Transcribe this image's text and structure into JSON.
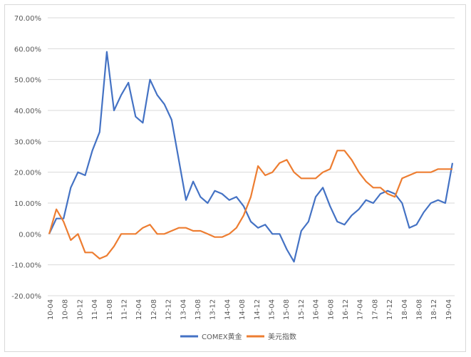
{
  "chart_data": {
    "type": "line",
    "title": "",
    "xlabel": "",
    "ylabel": "",
    "grid": true,
    "legend_position": "bottom",
    "ylim": [
      -0.2,
      0.7
    ],
    "y_ticks": [
      -0.2,
      -0.1,
      0.0,
      0.1,
      0.2,
      0.3,
      0.4,
      0.5,
      0.6,
      0.7
    ],
    "y_tick_labels": [
      "-20.00%",
      "-10.00%",
      "0.00%",
      "10.00%",
      "20.00%",
      "30.00%",
      "40.00%",
      "50.00%",
      "60.00%",
      "70.00%"
    ],
    "x_tick_labels": [
      "10-04",
      "10-08",
      "10-12",
      "11-04",
      "11-08",
      "11-12",
      "12-04",
      "12-08",
      "12-12",
      "13-04",
      "13-08",
      "13-12",
      "14-04",
      "14-08",
      "14-12",
      "15-04",
      "15-08",
      "15-12",
      "16-04",
      "16-08",
      "16-12",
      "17-04",
      "17-08",
      "17-12",
      "18-04",
      "18-08",
      "18-12",
      "19-04"
    ],
    "x": [
      "10-04",
      "10-06",
      "10-08",
      "10-10",
      "10-12",
      "11-02",
      "11-04",
      "11-06",
      "11-08",
      "11-10",
      "11-12",
      "12-02",
      "12-04",
      "12-06",
      "12-08",
      "12-10",
      "12-12",
      "13-02",
      "13-04",
      "13-06",
      "13-08",
      "13-10",
      "13-12",
      "14-02",
      "14-04",
      "14-06",
      "14-08",
      "14-10",
      "14-12",
      "15-02",
      "15-04",
      "15-06",
      "15-08",
      "15-10",
      "15-12",
      "16-02",
      "16-04",
      "16-06",
      "16-08",
      "16-10",
      "16-12",
      "17-02",
      "17-04",
      "17-06",
      "17-08",
      "17-10",
      "17-12",
      "18-02",
      "18-04",
      "18-06",
      "18-08",
      "18-10",
      "18-12",
      "19-02",
      "19-04",
      "19-06",
      "19-08"
    ],
    "series": [
      {
        "name": "COMEX黄金",
        "color": "#4472c4",
        "values": [
          0.0,
          0.05,
          0.05,
          0.15,
          0.2,
          0.19,
          0.27,
          0.33,
          0.59,
          0.4,
          0.45,
          0.49,
          0.38,
          0.36,
          0.5,
          0.45,
          0.42,
          0.37,
          0.24,
          0.11,
          0.17,
          0.12,
          0.1,
          0.14,
          0.13,
          0.11,
          0.12,
          0.09,
          0.04,
          0.02,
          0.03,
          0.0,
          0.0,
          -0.05,
          -0.09,
          0.01,
          0.04,
          0.12,
          0.15,
          0.09,
          0.04,
          0.03,
          0.06,
          0.08,
          0.11,
          0.1,
          0.13,
          0.14,
          0.13,
          0.1,
          0.02,
          0.03,
          0.07,
          0.1,
          0.11,
          0.1,
          0.23
        ]
      },
      {
        "name": "美元指数",
        "color": "#ed7d31",
        "values": [
          0.0,
          0.08,
          0.04,
          -0.02,
          0.0,
          -0.06,
          -0.06,
          -0.08,
          -0.07,
          -0.04,
          0.0,
          0.0,
          0.0,
          0.02,
          0.03,
          0.0,
          0.0,
          0.01,
          0.02,
          0.02,
          0.01,
          0.01,
          0.0,
          -0.01,
          -0.01,
          0.0,
          0.02,
          0.06,
          0.12,
          0.22,
          0.19,
          0.2,
          0.23,
          0.24,
          0.2,
          0.18,
          0.18,
          0.18,
          0.2,
          0.21,
          0.27,
          0.27,
          0.24,
          0.2,
          0.17,
          0.15,
          0.15,
          0.13,
          0.12,
          0.18,
          0.19,
          0.2,
          0.2,
          0.2,
          0.21,
          0.21,
          0.21
        ]
      }
    ]
  }
}
